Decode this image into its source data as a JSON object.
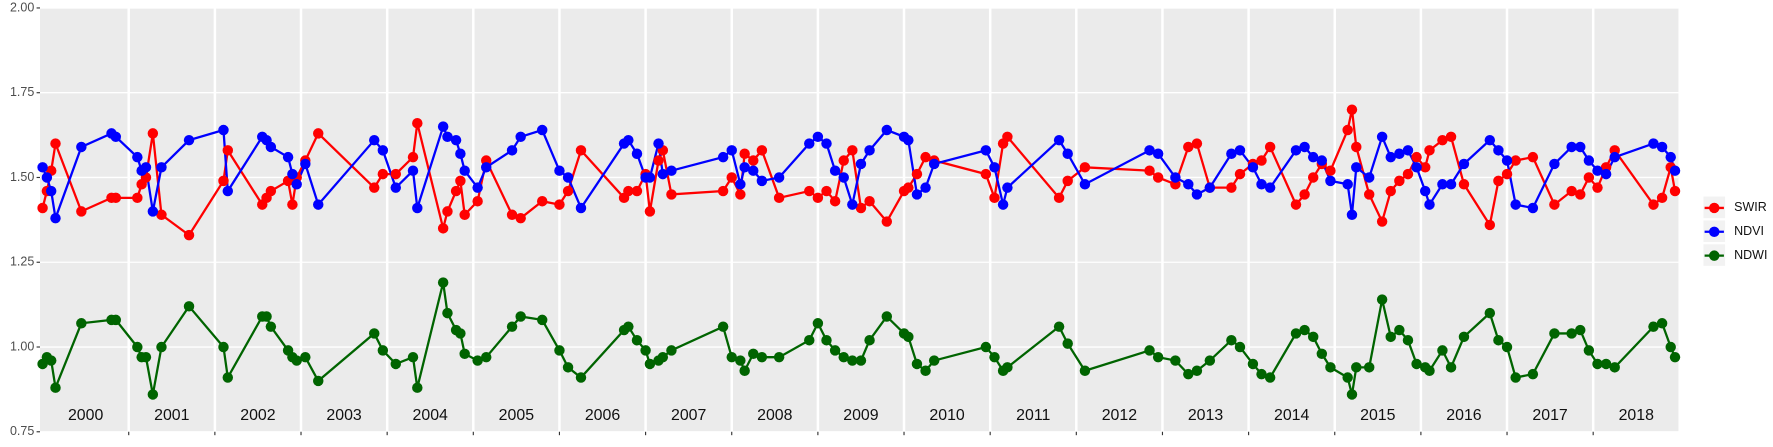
{
  "chart_data": {
    "type": "line",
    "x": [
      2000.0,
      2000.05,
      2000.1,
      2000.15,
      2000.45,
      2000.8,
      2000.85,
      2001.1,
      2001.15,
      2001.2,
      2001.28,
      2001.38,
      2001.7,
      2002.1,
      2002.15,
      2002.55,
      2002.6,
      2002.65,
      2002.85,
      2002.9,
      2002.95,
      2003.05,
      2003.2,
      2003.85,
      2003.95,
      2004.1,
      2004.3,
      2004.35,
      2004.65,
      2004.7,
      2004.8,
      2004.85,
      2004.9,
      2005.05,
      2005.15,
      2005.45,
      2005.55,
      2005.8,
      2006.0,
      2006.1,
      2006.25,
      2006.75,
      2006.8,
      2006.9,
      2007.0,
      2007.05,
      2007.15,
      2007.2,
      2007.3,
      2007.9,
      2008.0,
      2008.1,
      2008.15,
      2008.25,
      2008.35,
      2008.55,
      2008.9,
      2009.0,
      2009.1,
      2009.2,
      2009.3,
      2009.4,
      2009.5,
      2009.6,
      2009.8,
      2010.0,
      2010.05,
      2010.15,
      2010.25,
      2010.35,
      2010.95,
      2011.05,
      2011.15,
      2011.2,
      2011.8,
      2011.9,
      2012.1,
      2012.85,
      2012.95,
      2013.15,
      2013.3,
      2013.4,
      2013.55,
      2013.8,
      2013.9,
      2014.05,
      2014.15,
      2014.25,
      2014.55,
      2014.65,
      2014.75,
      2014.85,
      2014.95,
      2015.15,
      2015.2,
      2015.25,
      2015.4,
      2015.55,
      2015.65,
      2015.75,
      2015.85,
      2015.95,
      2016.05,
      2016.1,
      2016.25,
      2016.35,
      2016.5,
      2016.8,
      2016.9,
      2017.0,
      2017.1,
      2017.3,
      2017.55,
      2017.75,
      2017.85,
      2017.95,
      2018.05,
      2018.15,
      2018.25,
      2018.7,
      2018.8,
      2018.9,
      2018.95
    ],
    "series": [
      {
        "name": "SWIR",
        "color": "#ff0000",
        "values": [
          1.41,
          1.46,
          1.52,
          1.6,
          1.4,
          1.44,
          1.44,
          1.44,
          1.48,
          1.5,
          1.63,
          1.39,
          1.33,
          1.49,
          1.58,
          1.42,
          1.44,
          1.46,
          1.49,
          1.42,
          1.5,
          1.55,
          1.63,
          1.47,
          1.51,
          1.51,
          1.56,
          1.66,
          1.35,
          1.4,
          1.46,
          1.49,
          1.39,
          1.43,
          1.55,
          1.39,
          1.38,
          1.43,
          1.42,
          1.46,
          1.58,
          1.44,
          1.46,
          1.46,
          1.51,
          1.4,
          1.55,
          1.58,
          1.45,
          1.46,
          1.5,
          1.45,
          1.57,
          1.55,
          1.58,
          1.44,
          1.46,
          1.44,
          1.46,
          1.43,
          1.55,
          1.58,
          1.41,
          1.43,
          1.37,
          1.46,
          1.47,
          1.51,
          1.56,
          1.55,
          1.51,
          1.44,
          1.6,
          1.62,
          1.44,
          1.49,
          1.53,
          1.52,
          1.5,
          1.48,
          1.59,
          1.6,
          1.47,
          1.47,
          1.51,
          1.54,
          1.55,
          1.59,
          1.42,
          1.45,
          1.5,
          1.54,
          1.52,
          1.64,
          1.7,
          1.59,
          1.45,
          1.37,
          1.46,
          1.49,
          1.51,
          1.56,
          1.53,
          1.58,
          1.61,
          1.62,
          1.48,
          1.36,
          1.49,
          1.51,
          1.55,
          1.56,
          1.42,
          1.46,
          1.45,
          1.5,
          1.47,
          1.53,
          1.58,
          1.42,
          1.44,
          1.53,
          1.46
        ]
      },
      {
        "name": "NDVI",
        "color": "#0000ff",
        "values": [
          1.53,
          1.5,
          1.46,
          1.38,
          1.59,
          1.63,
          1.62,
          1.56,
          1.52,
          1.53,
          1.4,
          1.53,
          1.61,
          1.64,
          1.46,
          1.62,
          1.61,
          1.59,
          1.56,
          1.51,
          1.48,
          1.54,
          1.42,
          1.61,
          1.58,
          1.47,
          1.52,
          1.41,
          1.65,
          1.62,
          1.61,
          1.57,
          1.52,
          1.47,
          1.53,
          1.58,
          1.62,
          1.64,
          1.52,
          1.5,
          1.41,
          1.6,
          1.61,
          1.57,
          1.5,
          1.5,
          1.6,
          1.51,
          1.52,
          1.56,
          1.58,
          1.48,
          1.53,
          1.52,
          1.49,
          1.5,
          1.6,
          1.62,
          1.6,
          1.52,
          1.5,
          1.42,
          1.54,
          1.58,
          1.64,
          1.62,
          1.61,
          1.45,
          1.47,
          1.54,
          1.58,
          1.53,
          1.42,
          1.47,
          1.61,
          1.57,
          1.48,
          1.58,
          1.57,
          1.5,
          1.48,
          1.45,
          1.47,
          1.57,
          1.58,
          1.53,
          1.48,
          1.47,
          1.58,
          1.59,
          1.56,
          1.55,
          1.49,
          1.48,
          1.39,
          1.53,
          1.5,
          1.62,
          1.56,
          1.57,
          1.58,
          1.53,
          1.46,
          1.42,
          1.48,
          1.48,
          1.54,
          1.61,
          1.58,
          1.55,
          1.42,
          1.41,
          1.54,
          1.59,
          1.59,
          1.55,
          1.52,
          1.51,
          1.56,
          1.6,
          1.59,
          1.56,
          1.52
        ]
      },
      {
        "name": "NDWI",
        "color": "#006400",
        "values": [
          0.95,
          0.97,
          0.96,
          0.88,
          1.07,
          1.08,
          1.08,
          1.0,
          0.97,
          0.97,
          0.86,
          1.0,
          1.12,
          1.0,
          0.91,
          1.09,
          1.09,
          1.06,
          0.99,
          0.97,
          0.96,
          0.97,
          0.9,
          1.04,
          0.99,
          0.95,
          0.97,
          0.88,
          1.19,
          1.1,
          1.05,
          1.04,
          0.98,
          0.96,
          0.97,
          1.06,
          1.09,
          1.08,
          0.99,
          0.94,
          0.91,
          1.05,
          1.06,
          1.02,
          0.99,
          0.95,
          0.96,
          0.97,
          0.99,
          1.06,
          0.97,
          0.96,
          0.93,
          0.98,
          0.97,
          0.97,
          1.02,
          1.07,
          1.02,
          0.99,
          0.97,
          0.96,
          0.96,
          1.02,
          1.09,
          1.04,
          1.03,
          0.95,
          0.93,
          0.96,
          1.0,
          0.97,
          0.93,
          0.94,
          1.06,
          1.01,
          0.93,
          0.99,
          0.97,
          0.96,
          0.92,
          0.93,
          0.96,
          1.02,
          1.0,
          0.95,
          0.92,
          0.91,
          1.04,
          1.05,
          1.03,
          0.98,
          0.94,
          0.91,
          0.86,
          0.94,
          0.94,
          1.14,
          1.03,
          1.05,
          1.02,
          0.95,
          0.94,
          0.93,
          0.99,
          0.94,
          1.03,
          1.1,
          1.02,
          1.0,
          0.91,
          0.92,
          1.04,
          1.04,
          1.05,
          0.99,
          0.95,
          0.95,
          0.94,
          1.06,
          1.07,
          1.0,
          0.97
        ]
      }
    ],
    "xlim": [
      1999.97,
      2018.99
    ],
    "xticks": [
      2001,
      2002,
      2003,
      2004,
      2005,
      2006,
      2007,
      2008,
      2009,
      2010,
      2011,
      2012,
      2013,
      2014,
      2015,
      2016,
      2017,
      2018
    ],
    "year_labels": [
      {
        "value": 2000.5,
        "label": "2000"
      },
      {
        "value": 2001.5,
        "label": "2001"
      },
      {
        "value": 2002.5,
        "label": "2002"
      },
      {
        "value": 2003.5,
        "label": "2003"
      },
      {
        "value": 2004.5,
        "label": "2004"
      },
      {
        "value": 2005.5,
        "label": "2005"
      },
      {
        "value": 2006.5,
        "label": "2006"
      },
      {
        "value": 2007.5,
        "label": "2007"
      },
      {
        "value": 2008.5,
        "label": "2008"
      },
      {
        "value": 2009.5,
        "label": "2009"
      },
      {
        "value": 2010.5,
        "label": "2010"
      },
      {
        "value": 2011.5,
        "label": "2011"
      },
      {
        "value": 2012.5,
        "label": "2012"
      },
      {
        "value": 2013.5,
        "label": "2013"
      },
      {
        "value": 2014.5,
        "label": "2014"
      },
      {
        "value": 2015.5,
        "label": "2015"
      },
      {
        "value": 2016.5,
        "label": "2016"
      },
      {
        "value": 2017.5,
        "label": "2017"
      },
      {
        "value": 2018.5,
        "label": "2018"
      }
    ],
    "ylim": [
      0.75,
      2.0
    ],
    "yticks": [
      0.75,
      {
        "value": 1,
        "label": "1.00"
      },
      1.25,
      {
        "value": 1.5,
        "label": "1.50"
      },
      1.75,
      {
        "value": 2,
        "label": "2.00"
      }
    ],
    "grid": true,
    "legend": "right"
  }
}
